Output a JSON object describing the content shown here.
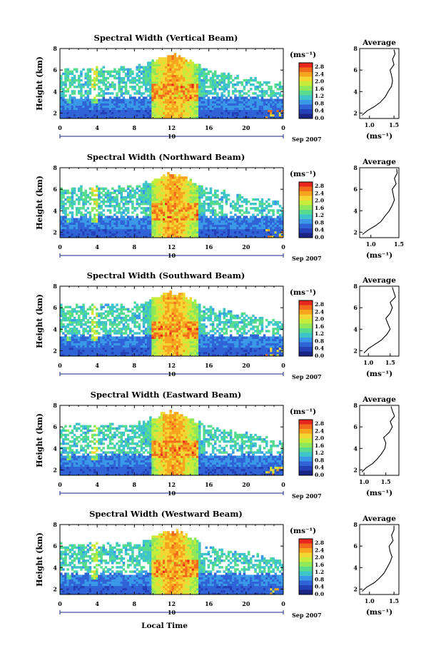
{
  "figure": {
    "month_label": "Sep 2007",
    "day_label": "10",
    "time_axis_title": "Local Time"
  },
  "colorbar": {
    "unit_label": "(ms⁻¹)",
    "tick_labels": [
      "2.8",
      "2.4",
      "2.0",
      "1.6",
      "1.2",
      "0.8",
      "0.4",
      "0.0"
    ],
    "colors": [
      "#e8261e",
      "#f26b1d",
      "#f7a51f",
      "#f4d735",
      "#c6ec3c",
      "#8fe85a",
      "#57dc8e",
      "#3ec4c9",
      "#3a98e8",
      "#3063d6",
      "#2440b6",
      "#1a2484"
    ]
  },
  "chart_data": [
    {
      "type": "heatmap",
      "title": "Spectral Width (Vertical Beam)",
      "xlabel": "",
      "ylabel": "Height (km)",
      "x_ticks": [
        "0",
        "4",
        "8",
        "12",
        "16",
        "20",
        "0"
      ],
      "y_ticks": [
        "2",
        "4",
        "6",
        "8"
      ],
      "xlim": [
        0,
        24
      ],
      "ylim": [
        1.5,
        8
      ],
      "value_range": [
        0.0,
        3.0
      ],
      "profile": {
        "title": "Average",
        "xlabel": "(ms⁻¹)",
        "x_ticks": [
          "1.0",
          "1.5"
        ],
        "xlim": [
          0.8,
          1.6
        ],
        "heights": [
          1.8,
          2.2,
          2.6,
          3.0,
          3.5,
          4.0,
          4.5,
          5.0,
          5.5,
          6.0,
          6.5,
          7.0,
          7.5,
          7.9
        ],
        "values": [
          0.85,
          0.95,
          1.1,
          1.22,
          1.32,
          1.38,
          1.45,
          1.47,
          1.45,
          1.42,
          1.5,
          1.47,
          1.52,
          1.5
        ]
      }
    },
    {
      "type": "heatmap",
      "title": "Spectral Width (Northward Beam)",
      "xlabel": "",
      "ylabel": "Height (km)",
      "x_ticks": [
        "0",
        "4",
        "8",
        "12",
        "16",
        "20",
        "0"
      ],
      "y_ticks": [
        "2",
        "4",
        "6",
        "8"
      ],
      "xlim": [
        0,
        24
      ],
      "ylim": [
        1.5,
        8
      ],
      "value_range": [
        0.0,
        3.0
      ],
      "profile": {
        "title": "Average",
        "xlabel": "(ms⁻¹)",
        "x_ticks": [
          "1.0",
          "1.5"
        ],
        "xlim": [
          0.8,
          1.5
        ],
        "heights": [
          1.8,
          2.2,
          2.6,
          3.0,
          3.5,
          4.0,
          4.5,
          5.0,
          5.5,
          6.0,
          6.5,
          7.0,
          7.5,
          7.9
        ],
        "values": [
          0.85,
          0.95,
          1.08,
          1.18,
          1.25,
          1.33,
          1.38,
          1.42,
          1.4,
          1.38,
          1.45,
          1.42,
          1.47,
          1.46
        ]
      }
    },
    {
      "type": "heatmap",
      "title": "Spectral Width (Southward Beam)",
      "xlabel": "",
      "ylabel": "Height (km)",
      "x_ticks": [
        "0",
        "4",
        "8",
        "12",
        "16",
        "20",
        "0"
      ],
      "y_ticks": [
        "2",
        "4",
        "6",
        "8"
      ],
      "xlim": [
        0,
        24
      ],
      "ylim": [
        1.5,
        8
      ],
      "value_range": [
        0.0,
        3.0
      ],
      "profile": {
        "title": "Average",
        "xlabel": "(ms⁻¹)",
        "x_ticks": [
          "1.0",
          "1.5"
        ],
        "xlim": [
          0.8,
          1.7
        ],
        "heights": [
          1.8,
          2.2,
          2.6,
          3.0,
          3.5,
          4.0,
          4.5,
          5.0,
          5.5,
          6.0,
          6.5,
          7.0,
          7.5,
          7.9
        ],
        "values": [
          0.9,
          1.0,
          1.15,
          1.3,
          1.42,
          1.5,
          1.45,
          1.4,
          1.5,
          1.55,
          1.5,
          1.62,
          1.58,
          1.55
        ]
      }
    },
    {
      "type": "heatmap",
      "title": "Spectral Width (Eastward Beam)",
      "xlabel": "",
      "ylabel": "Height (km)",
      "x_ticks": [
        "0",
        "4",
        "8",
        "12",
        "16",
        "20",
        "0"
      ],
      "y_ticks": [
        "2",
        "4",
        "6",
        "8"
      ],
      "xlim": [
        0,
        24
      ],
      "ylim": [
        1.5,
        8
      ],
      "value_range": [
        0.0,
        3.0
      ],
      "profile": {
        "title": "Average",
        "xlabel": "(ms⁻¹)",
        "x_ticks": [
          "1.0",
          "1.5"
        ],
        "xlim": [
          0.9,
          1.8
        ],
        "heights": [
          1.8,
          2.2,
          2.6,
          3.0,
          3.5,
          4.0,
          4.5,
          5.0,
          5.5,
          6.0,
          6.5,
          7.0,
          7.5,
          7.9
        ],
        "values": [
          0.95,
          1.05,
          1.2,
          1.3,
          1.4,
          1.48,
          1.5,
          1.45,
          1.58,
          1.65,
          1.6,
          1.7,
          1.65,
          1.62
        ]
      }
    },
    {
      "type": "heatmap",
      "title": "Spectral Width (Westward Beam)",
      "xlabel": "Local Time",
      "ylabel": "Height (km)",
      "x_ticks": [
        "0",
        "4",
        "8",
        "12",
        "16",
        "20",
        "0"
      ],
      "y_ticks": [
        "2",
        "4",
        "6",
        "8"
      ],
      "xlim": [
        0,
        24
      ],
      "ylim": [
        1.5,
        8
      ],
      "value_range": [
        0.0,
        3.0
      ],
      "profile": {
        "title": "Average",
        "xlabel": "(ms⁻¹)",
        "x_ticks": [
          "1.0",
          "1.5"
        ],
        "xlim": [
          0.8,
          1.6
        ],
        "heights": [
          1.8,
          2.2,
          2.6,
          3.0,
          3.5,
          4.0,
          4.5,
          5.0,
          5.5,
          6.0,
          6.5,
          7.0,
          7.5,
          7.9
        ],
        "values": [
          0.85,
          0.95,
          1.1,
          1.2,
          1.3,
          1.36,
          1.42,
          1.46,
          1.42,
          1.4,
          1.48,
          1.45,
          1.5,
          1.5
        ]
      }
    }
  ]
}
